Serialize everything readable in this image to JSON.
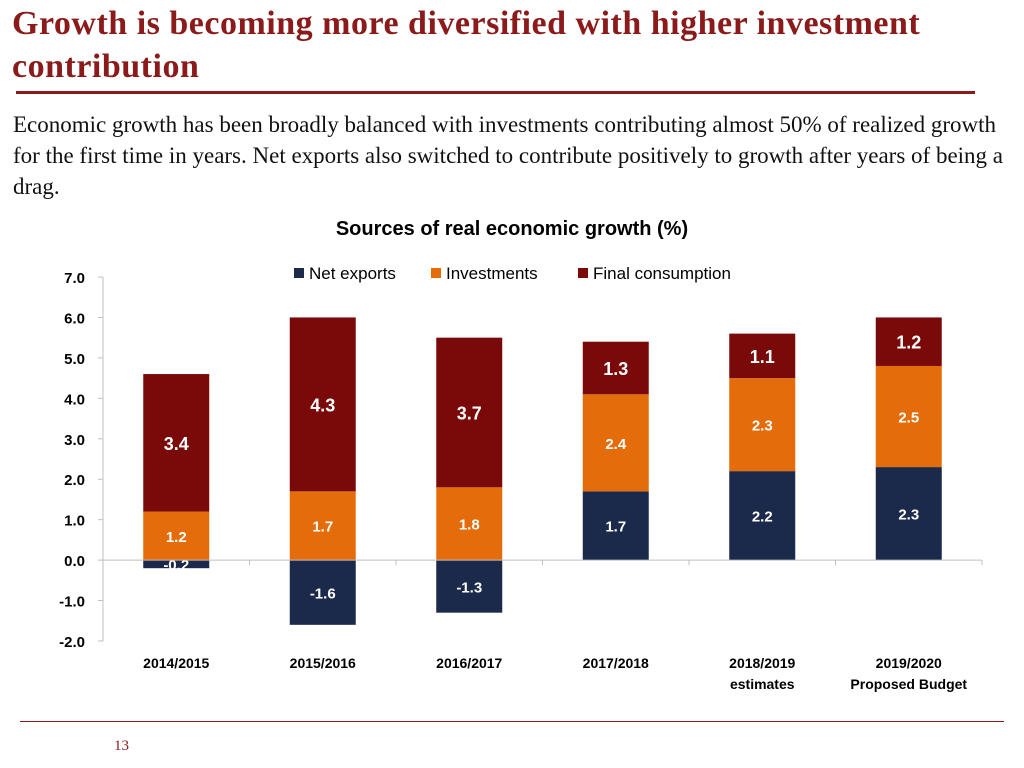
{
  "slide": {
    "title": "Growth is becoming more diversified with higher investment contribution",
    "intro": "Economic growth has been broadly balanced with investments contributing almost 50% of realized growth for the first time in years. Net exports also switched to contribute positively to growth after years of being a drag.",
    "page_number": "13"
  },
  "chart_data": {
    "type": "bar",
    "stacked": true,
    "title": "Sources of real economic growth (%)",
    "categories": [
      [
        "2014/2015"
      ],
      [
        "2015/2016"
      ],
      [
        "2016/2017"
      ],
      [
        "2017/2018"
      ],
      [
        "2018/2019",
        "estimates"
      ],
      [
        "2019/2020",
        "Proposed Budget"
      ]
    ],
    "series": [
      {
        "name": "Net exports",
        "color": "#1b2a4a",
        "values": [
          -0.2,
          -1.6,
          -1.3,
          1.7,
          2.2,
          2.3
        ]
      },
      {
        "name": "Investments",
        "color": "#e46c0a",
        "values": [
          1.2,
          1.7,
          1.8,
          2.4,
          2.3,
          2.5
        ]
      },
      {
        "name": "Final consumption",
        "color": "#7a0a0a",
        "values": [
          3.4,
          4.3,
          3.7,
          1.3,
          1.1,
          1.2
        ]
      }
    ],
    "yticks": [
      "-2.0",
      "-1.0",
      "0.0",
      "1.0",
      "2.0",
      "3.0",
      "4.0",
      "5.0",
      "6.0",
      "7.0"
    ],
    "ylim": [
      -2,
      7
    ],
    "legend": "top-center",
    "xlabel": "",
    "ylabel": ""
  }
}
